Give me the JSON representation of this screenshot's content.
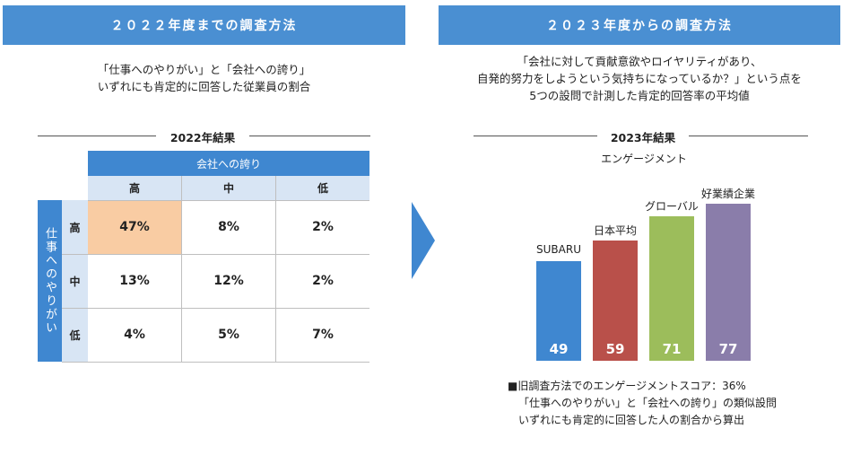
{
  "left": {
    "header": "２０２２年度までの調査方法",
    "desc": [
      "「仕事へのやりがい」と「会社への誇り」",
      "いずれにも肯定的に回答した従業員の割合"
    ],
    "result_title": "2022年結果",
    "col_group": "会社への誇り",
    "col_levels": [
      "高",
      "中",
      "低"
    ],
    "row_group": "仕事へのやりがい",
    "row_levels": [
      "高",
      "中",
      "低"
    ],
    "cells": [
      [
        "47%",
        "8%",
        "2%"
      ],
      [
        "13%",
        "12%",
        "2%"
      ],
      [
        "4%",
        "5%",
        "7%"
      ]
    ],
    "highlight_color": "#f9cca3"
  },
  "right": {
    "header": "２０２３年度からの調査方法",
    "desc": [
      "「会社に対して貢献意欲やロイヤリティがあり、",
      "自発的努力をしようという気持ちになっているか？」という点を",
      "5つの設問で計測した肯定的回答率の平均値"
    ],
    "result_title": "2023年結果",
    "note": [
      "■旧調査方法でのエンゲージメントスコア：36%",
      "「仕事へのやりがい」と「会社への誇り」の類似設問",
      "いずれにも肯定的に回答した人の割合から算出"
    ]
  },
  "chart_data": {
    "type": "bar",
    "title": "エンゲージメント",
    "categories": [
      "SUBARU",
      "日本平均",
      "グローバル",
      "好業績企業"
    ],
    "values": [
      49,
      59,
      71,
      77
    ],
    "colors": [
      "#3f87d0",
      "#b9504a",
      "#9cbd5b",
      "#8a7daa"
    ],
    "ylim": [
      0,
      80
    ]
  },
  "colors": {
    "header": "#4a8fd2",
    "arrow": "#3f87d0"
  }
}
